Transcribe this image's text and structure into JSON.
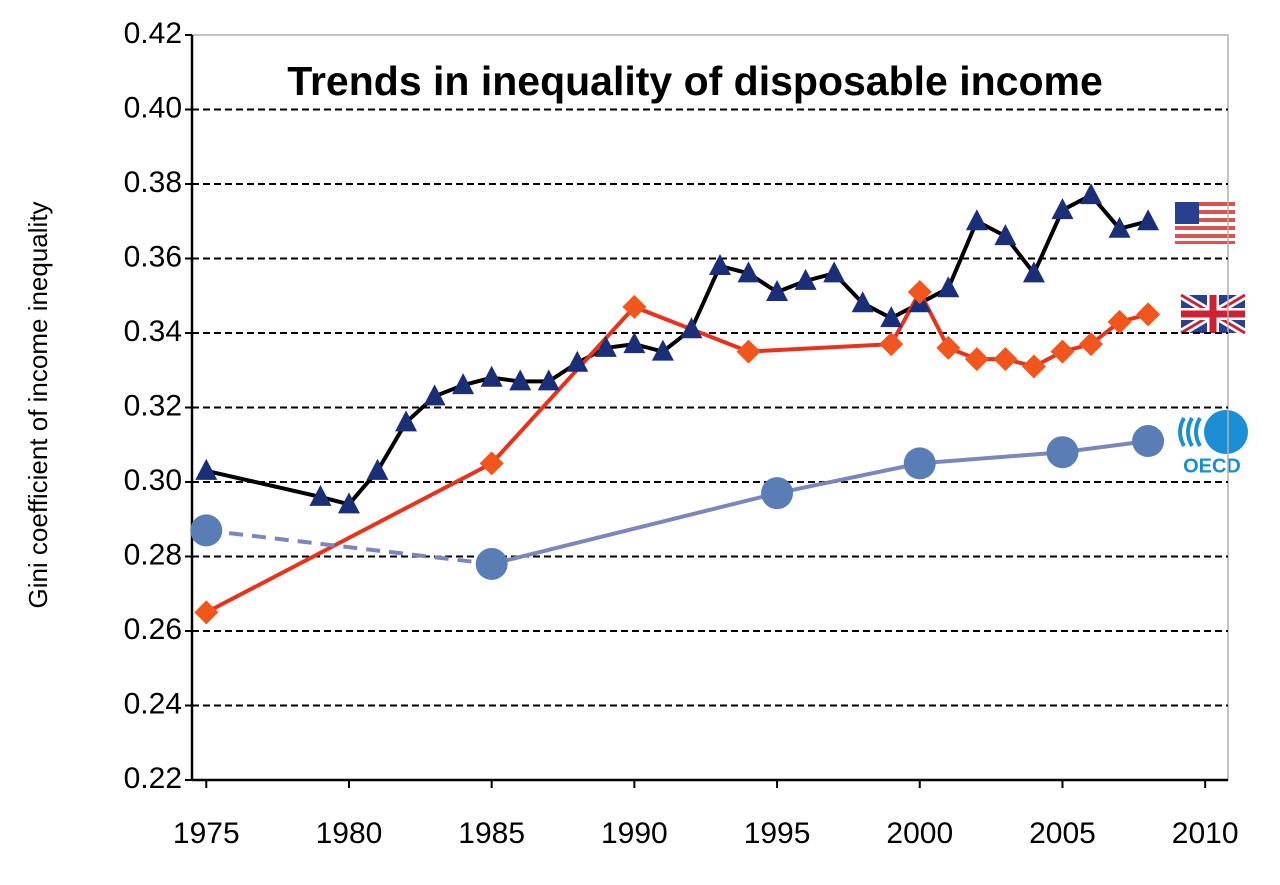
{
  "chart_data": {
    "type": "line",
    "title": "Trends in inequality of disposable income",
    "y_label": "Gini coefficient of income inequality",
    "xlim": [
      1974.5,
      2010.8
    ],
    "xticks": [
      1975,
      1980,
      1985,
      1990,
      1995,
      2000,
      2005,
      2010
    ],
    "ylim": [
      0.22,
      0.42
    ],
    "yticks": [
      0.22,
      0.24,
      0.26,
      0.28,
      {
        "value": 0.3,
        "label": "0.30"
      },
      0.32,
      0.34,
      0.36,
      0.38,
      {
        "value": 0.4,
        "label": "0.40"
      },
      0.42
    ],
    "grid": true,
    "series": [
      {
        "color": "#000000",
        "marker": "triangle",
        "marker_color": "#1b2f78",
        "x": [
          1975,
          1979,
          1980,
          1981,
          1982,
          1983,
          1984,
          1985,
          1986,
          1987,
          1988,
          1989,
          1990,
          1991,
          1992,
          1993,
          1994,
          1995,
          1996,
          1997,
          1998,
          1999,
          2000,
          2001,
          2002,
          2003,
          2004,
          2005,
          2006,
          2007,
          2008
        ],
        "values": [
          0.303,
          0.296,
          0.294,
          0.303,
          0.316,
          0.323,
          0.326,
          0.328,
          0.327,
          0.327,
          0.332,
          0.336,
          0.337,
          0.335,
          0.341,
          0.358,
          0.356,
          0.351,
          0.354,
          0.356,
          0.348,
          0.344,
          0.348,
          0.352,
          0.37,
          0.366,
          0.356,
          0.373,
          0.377,
          0.368,
          0.37
        ]
      },
      {
        "color": "#e8321b",
        "marker": "diamond",
        "marker_color": "#f2561d",
        "x": [
          1975,
          1985,
          1990,
          1994,
          1999,
          2000,
          2001,
          2002,
          2003,
          2004,
          2005,
          2006,
          2007,
          2008
        ],
        "values": [
          0.265,
          0.305,
          0.347,
          0.335,
          0.337,
          0.351,
          0.336,
          0.333,
          0.333,
          0.331,
          0.335,
          0.337,
          0.343,
          0.345
        ]
      },
      {
        "name": "OECD",
        "color": "#7b86bc",
        "marker": "circle",
        "marker_color": "#5b7db5",
        "segment_styles": [
          "dashed",
          "solid",
          "solid",
          "solid",
          "solid"
        ],
        "x": [
          1975,
          1985,
          1995,
          2000,
          2005,
          2008
        ],
        "values": [
          0.287,
          0.278,
          0.297,
          0.305,
          0.308,
          0.311
        ]
      }
    ]
  }
}
